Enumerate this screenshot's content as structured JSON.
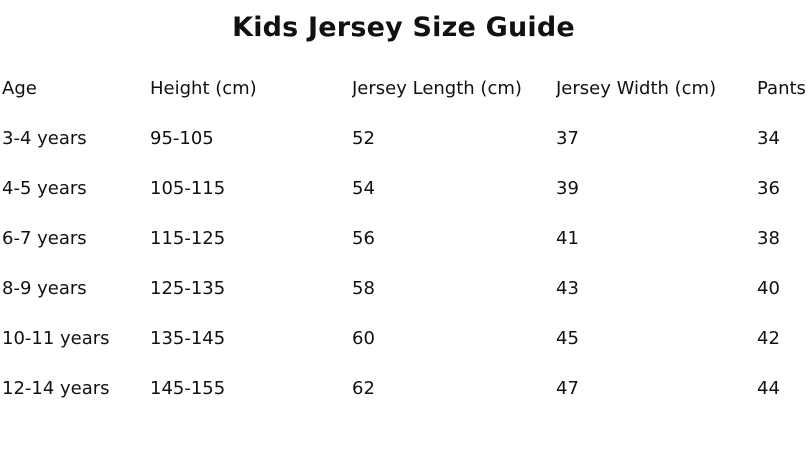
{
  "page": {
    "background_color": "#ffffff",
    "text_color": "#111111"
  },
  "title": "Kids Jersey Size Guide",
  "table": {
    "headers": [
      "Age",
      "Height (cm)",
      "Jersey Length (cm)",
      "Jersey Width (cm)",
      "Pants"
    ],
    "rows": [
      {
        "age": "3-4 years",
        "height": "95-105",
        "jersey_length": "52",
        "jersey_width": "37",
        "pants": "34"
      },
      {
        "age": "4-5 years",
        "height": "105-115",
        "jersey_length": "54",
        "jersey_width": "39",
        "pants": "36"
      },
      {
        "age": "6-7 years",
        "height": "115-125",
        "jersey_length": "56",
        "jersey_width": "41",
        "pants": "38"
      },
      {
        "age": "8-9 years",
        "height": "125-135",
        "jersey_length": "58",
        "jersey_width": "43",
        "pants": "40"
      },
      {
        "age": "10-11 years",
        "height": "135-145",
        "jersey_length": "60",
        "jersey_width": "45",
        "pants": "42"
      },
      {
        "age": "12-14 years",
        "height": "145-155",
        "jersey_length": "62",
        "jersey_width": "47",
        "pants": "44"
      }
    ]
  }
}
